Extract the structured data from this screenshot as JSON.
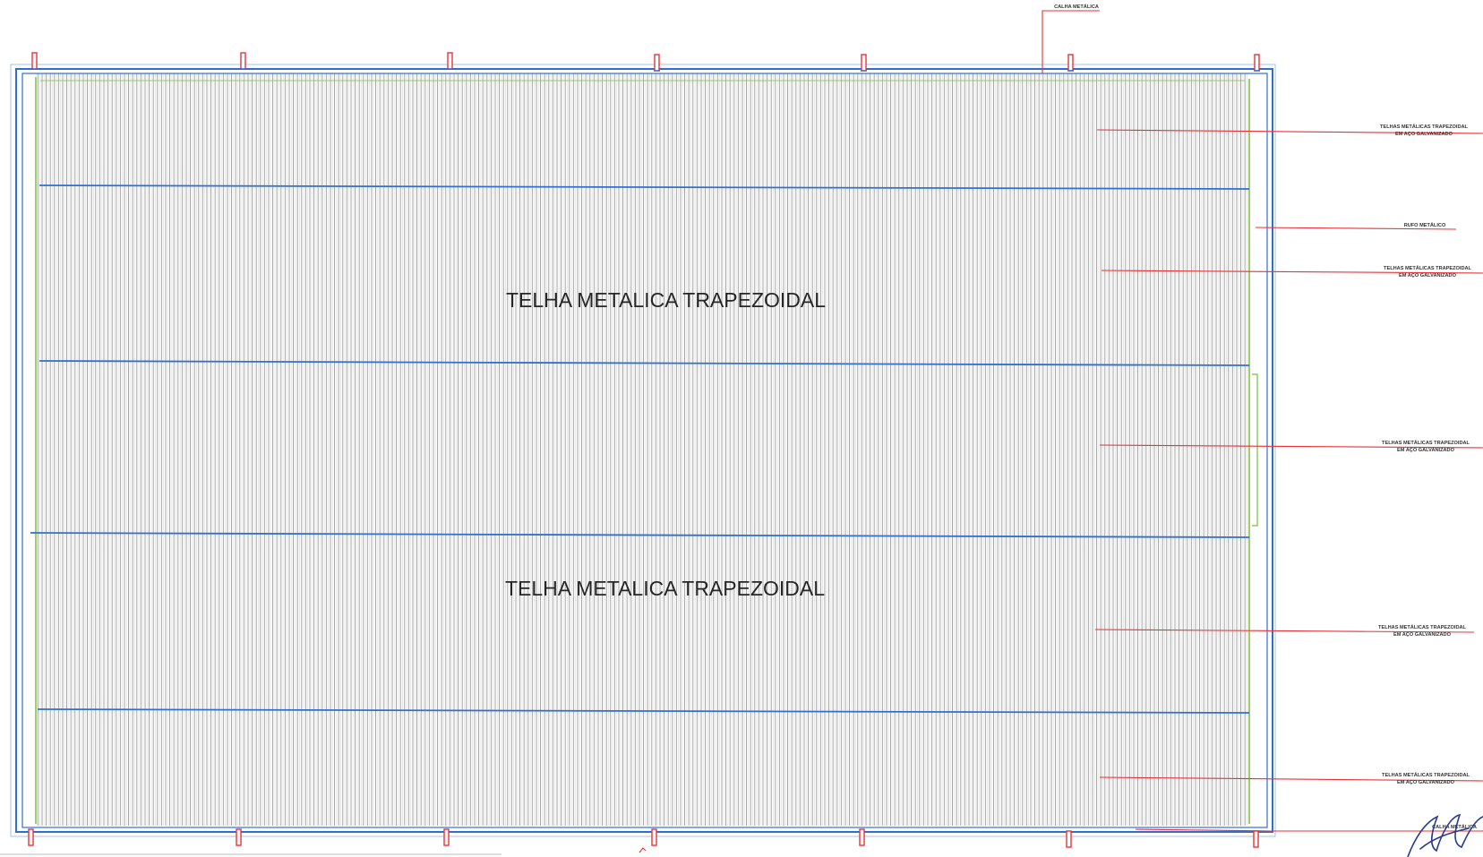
{
  "drawing": {
    "regions": [
      {
        "label": "TELHA METALICA TRAPEZOIDAL"
      },
      {
        "label": "TELHA METALICA TRAPEZOIDAL"
      }
    ],
    "callouts": {
      "gutter_top": "CALHA METÁLICA",
      "tile_1": [
        "TELHAS METÁLICAS TRAPEZOIDAL",
        "EM AÇO GALVANIZADO"
      ],
      "ridge": "RUFO METÁLICO",
      "tile_2": [
        "TELHAS METÁLICAS TRAPEZOIDAL",
        "EM AÇO GALVANIZADO"
      ],
      "tile_3": [
        "TELHAS METÁLICAS TRAPEZOIDAL",
        "EM AÇO GALVANIZADO"
      ],
      "tile_4": [
        "TELHAS METÁLICAS TRAPEZOIDAL",
        "EM AÇO GALVANIZADO"
      ],
      "tile_5": [
        "TELHAS METÁLICAS TRAPEZOIDAL",
        "EM AÇO GALVANIZADO"
      ],
      "gutter_bottom": "CALHA METÁLICA"
    },
    "colors": {
      "outline": "#2e6fd6",
      "leader": "#e8323a",
      "corrugation": "#9a9a9a",
      "trim": "#7cbf3a",
      "signature": "#2a3b8f"
    },
    "icons": [
      "column-marker-icon",
      "signature-mark"
    ]
  }
}
